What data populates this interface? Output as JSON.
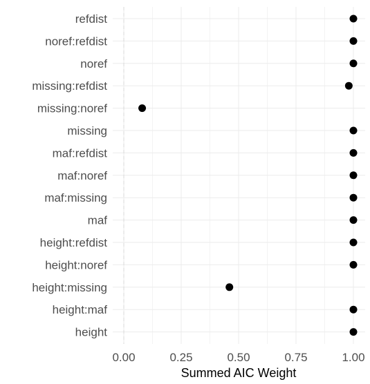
{
  "chart_data": {
    "type": "scatter",
    "title": "",
    "xlabel": "Summed AIC Weight",
    "ylabel": "",
    "xlim": [
      0,
      1
    ],
    "x_ticks": [
      "0.00",
      "0.25",
      "0.50",
      "0.75",
      "1.00"
    ],
    "x_tick_values": [
      0,
      0.25,
      0.5,
      0.75,
      1.0
    ],
    "reference_line": {
      "x": 0,
      "style": "dashed"
    },
    "grid": true,
    "categories": [
      "refdist",
      "noref:refdist",
      "noref",
      "missing:refdist",
      "missing:noref",
      "missing",
      "maf:refdist",
      "maf:noref",
      "maf:missing",
      "maf",
      "height:refdist",
      "height:noref",
      "height:missing",
      "height:maf",
      "height"
    ],
    "values": [
      1.0,
      1.0,
      1.0,
      0.98,
      0.08,
      1.0,
      1.0,
      1.0,
      1.0,
      1.0,
      1.0,
      1.0,
      0.46,
      1.0,
      1.0
    ]
  },
  "colors": {
    "point": "#000000",
    "grid": "#ebebeb",
    "reference_line": "#d9d9d9",
    "tick_label": "#4d4d4d"
  }
}
